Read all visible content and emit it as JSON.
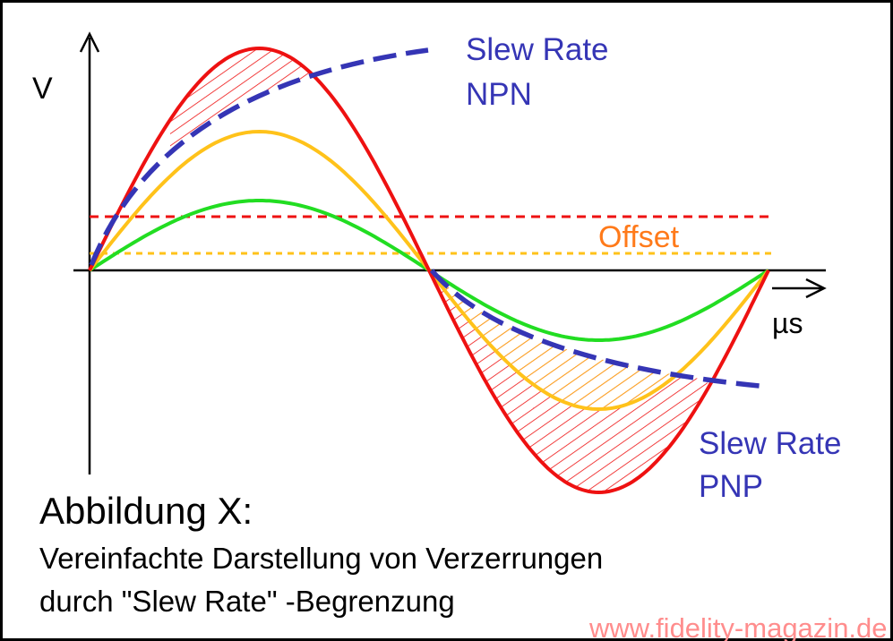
{
  "axes": {
    "y_label": "V",
    "x_label": "µs"
  },
  "labels": {
    "slew_npn_line1": "Slew Rate",
    "slew_npn_line2": "NPN",
    "slew_pnp_line1": "Slew Rate",
    "slew_pnp_line2": "PNP",
    "offset": "Offset"
  },
  "caption": {
    "title": "Abbildung X:",
    "line1": "Vereinfachte Darstellung von Verzerrungen",
    "line2": "durch \"Slew Rate\" -Begrenzung"
  },
  "watermark": "www.fidelity-magazin.de",
  "colors": {
    "red": "#ee1111",
    "yellow": "#ffc21a",
    "green": "#22dd22",
    "blue": "#3535b5",
    "orange": "#ff7a1a",
    "watermark": "#ff8d8d"
  }
}
